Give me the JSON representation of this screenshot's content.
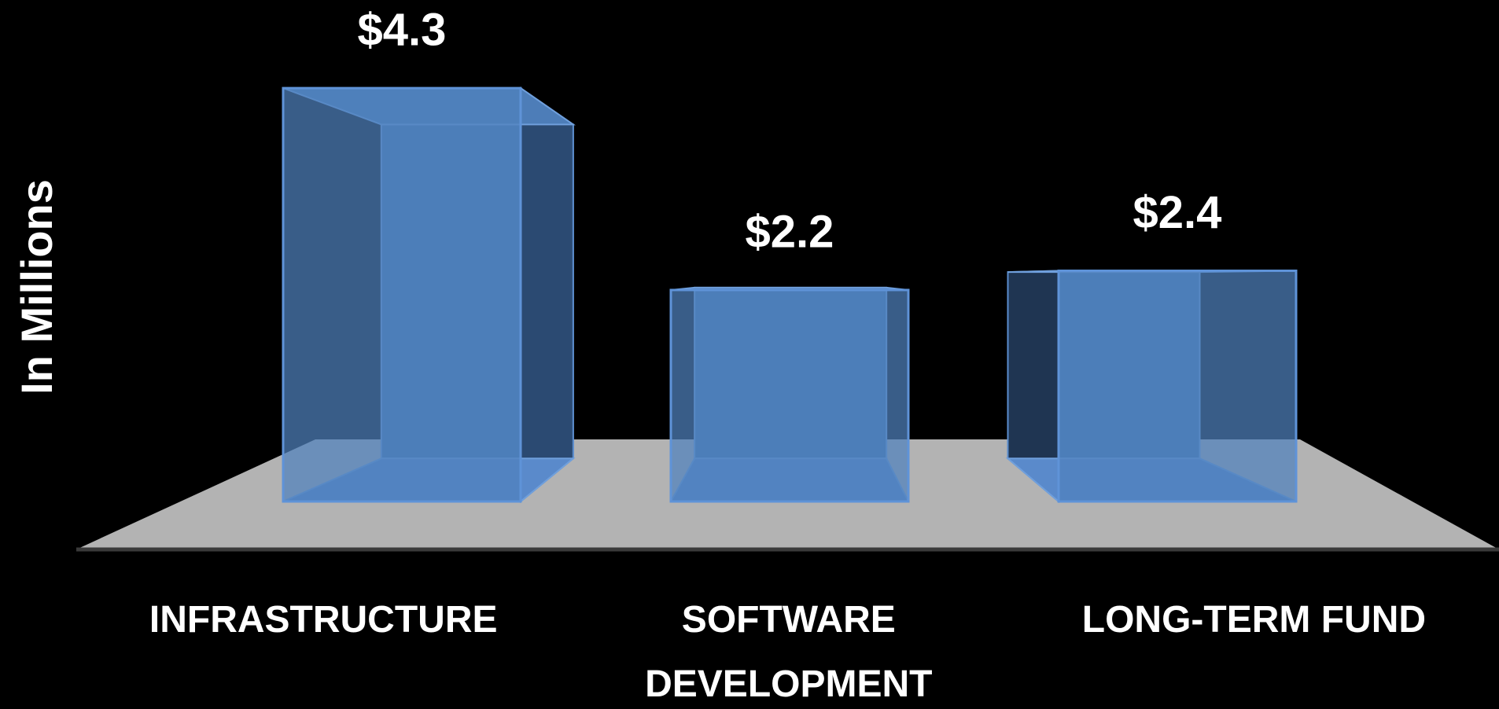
{
  "chart_data": {
    "type": "bar3d",
    "y_axis_label": "In Millions",
    "categories": [
      "INFRASTRUCTURE",
      "SOFTWARE DEVELOPMENT",
      "LONG-TERM FUND"
    ],
    "values": [
      4.3,
      2.2,
      2.4
    ],
    "value_labels": [
      "$4.3",
      "$2.2",
      "$2.4"
    ],
    "color": "#4f81bd"
  }
}
